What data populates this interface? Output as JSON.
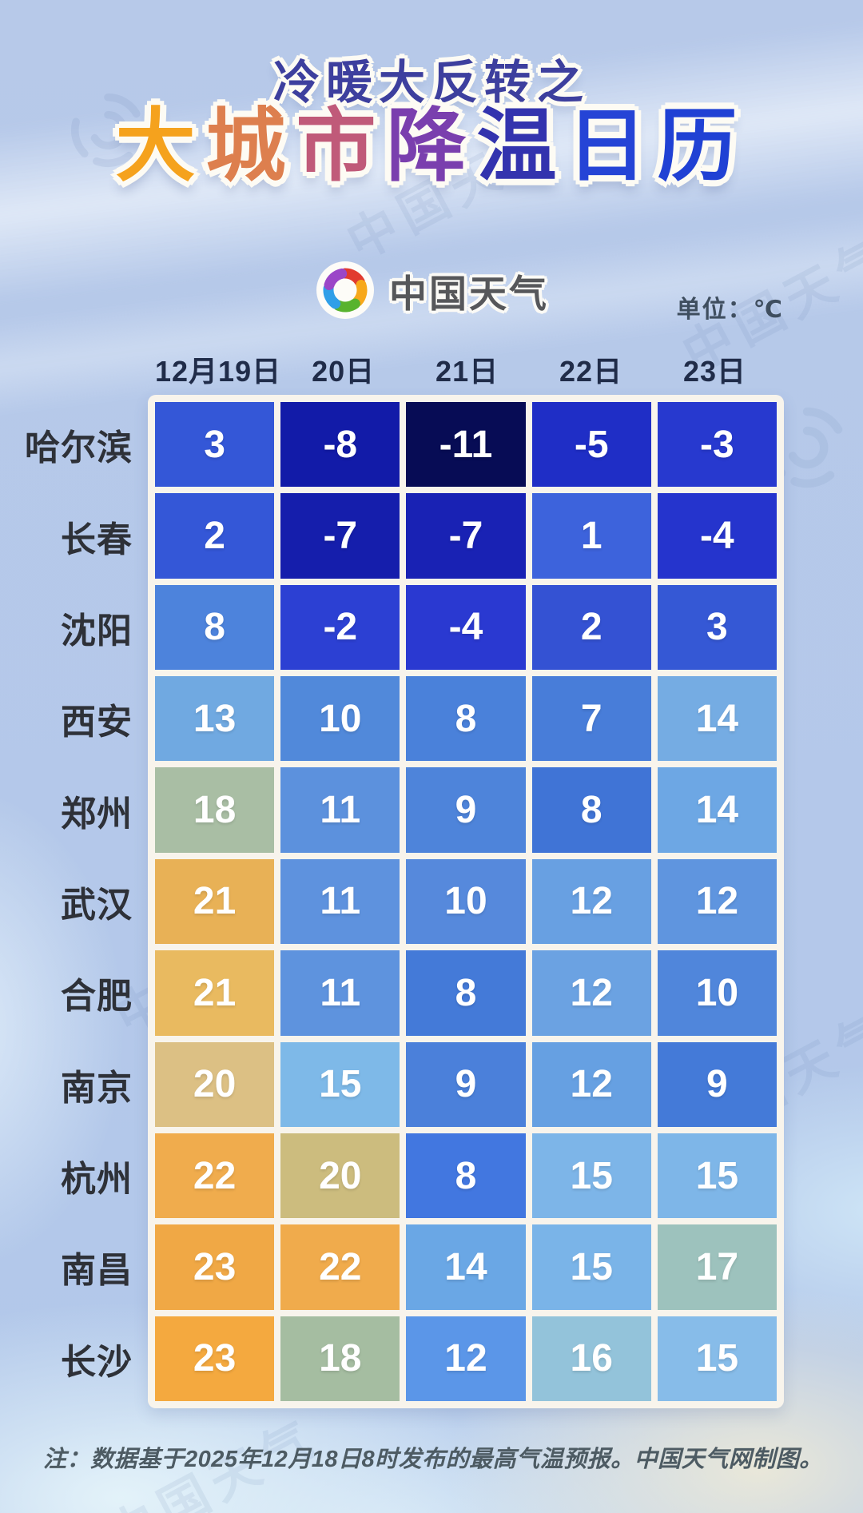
{
  "title": {
    "line1": "冷暖大反转之",
    "line2": "大城市降温日历",
    "line2_char_colors": [
      "#f5a21d",
      "#dd7f4e",
      "#c05a79",
      "#7a3fae",
      "#3333ae",
      "#2544d6",
      "#2041d4"
    ]
  },
  "brand": {
    "logo_icon": "pinwheel-icon",
    "logo_text": "中国天气",
    "petal_colors": [
      "#e13b2f",
      "#f7a81b",
      "#58b32e",
      "#2f9fe8",
      "#9b46c8"
    ]
  },
  "unit_label": "单位：℃",
  "table": {
    "date_headers": [
      "12月19日",
      "20日",
      "21日",
      "22日",
      "23日"
    ],
    "rows": [
      {
        "city": "哈尔滨",
        "cells": [
          {
            "v": "3",
            "c": "#3457d7"
          },
          {
            "v": "-8",
            "c": "#121ba8"
          },
          {
            "v": "-11",
            "c": "#070c55"
          },
          {
            "v": "-5",
            "c": "#1f2ec6"
          },
          {
            "v": "-3",
            "c": "#2739cf"
          }
        ]
      },
      {
        "city": "长春",
        "cells": [
          {
            "v": "2",
            "c": "#3457d7"
          },
          {
            "v": "-7",
            "c": "#151eac"
          },
          {
            "v": "-7",
            "c": "#1922b4"
          },
          {
            "v": "1",
            "c": "#3d63dc"
          },
          {
            "v": "-4",
            "c": "#2534cd"
          }
        ]
      },
      {
        "city": "沈阳",
        "cells": [
          {
            "v": "8",
            "c": "#4d83dc"
          },
          {
            "v": "-2",
            "c": "#2c40d3"
          },
          {
            "v": "-4",
            "c": "#2a39d1"
          },
          {
            "v": "2",
            "c": "#3452d3"
          },
          {
            "v": "3",
            "c": "#3558d5"
          }
        ]
      },
      {
        "city": "西安",
        "cells": [
          {
            "v": "13",
            "c": "#70a9e1"
          },
          {
            "v": "10",
            "c": "#5189da"
          },
          {
            "v": "8",
            "c": "#4a81da"
          },
          {
            "v": "7",
            "c": "#487dd9"
          },
          {
            "v": "14",
            "c": "#75ace3"
          }
        ]
      },
      {
        "city": "郑州",
        "cells": [
          {
            "v": "18",
            "c": "#a9bea4"
          },
          {
            "v": "11",
            "c": "#5c91dd"
          },
          {
            "v": "9",
            "c": "#4e84da"
          },
          {
            "v": "8",
            "c": "#4074d6"
          },
          {
            "v": "14",
            "c": "#6da7e4"
          }
        ]
      },
      {
        "city": "武汉",
        "cells": [
          {
            "v": "21",
            "c": "#e8b156"
          },
          {
            "v": "11",
            "c": "#5e92de"
          },
          {
            "v": "10",
            "c": "#5689dc"
          },
          {
            "v": "12",
            "c": "#68a0e2"
          },
          {
            "v": "12",
            "c": "#5f95df"
          }
        ]
      },
      {
        "city": "合肥",
        "cells": [
          {
            "v": "21",
            "c": "#e9ba60"
          },
          {
            "v": "11",
            "c": "#5e93de"
          },
          {
            "v": "8",
            "c": "#447ad8"
          },
          {
            "v": "12",
            "c": "#6ba2e2"
          },
          {
            "v": "10",
            "c": "#5086db"
          }
        ]
      },
      {
        "city": "南京",
        "cells": [
          {
            "v": "20",
            "c": "#dcc084"
          },
          {
            "v": "15",
            "c": "#7eb9e8"
          },
          {
            "v": "9",
            "c": "#4b80da"
          },
          {
            "v": "12",
            "c": "#66a0e2"
          },
          {
            "v": "9",
            "c": "#447ad8"
          }
        ]
      },
      {
        "city": "杭州",
        "cells": [
          {
            "v": "22",
            "c": "#f0ac4d"
          },
          {
            "v": "20",
            "c": "#ccbc7e"
          },
          {
            "v": "8",
            "c": "#4277e0"
          },
          {
            "v": "15",
            "c": "#7db5e8"
          },
          {
            "v": "15",
            "c": "#7eb6e8"
          }
        ]
      },
      {
        "city": "南昌",
        "cells": [
          {
            "v": "23",
            "c": "#f0a845"
          },
          {
            "v": "22",
            "c": "#f0ab4c"
          },
          {
            "v": "14",
            "c": "#6aa7e5"
          },
          {
            "v": "15",
            "c": "#7ab4e8"
          },
          {
            "v": "17",
            "c": "#9dc2bd"
          }
        ]
      },
      {
        "city": "长沙",
        "cells": [
          {
            "v": "23",
            "c": "#f4a93f"
          },
          {
            "v": "18",
            "c": "#a5bda1"
          },
          {
            "v": "12",
            "c": "#5b96e8"
          },
          {
            "v": "16",
            "c": "#93c3da"
          },
          {
            "v": "15",
            "c": "#87bce9"
          }
        ]
      }
    ]
  },
  "footnote": "注：数据基于2025年12月18日8时发布的最高气温预报。中国天气网制图。",
  "chart_data": {
    "type": "heatmap",
    "title": "冷暖大反转之 大城市降温日历",
    "subtitle": "中国天气",
    "unit": "℃",
    "columns": [
      "12月19日",
      "20日",
      "21日",
      "22日",
      "23日"
    ],
    "rows": [
      "哈尔滨",
      "长春",
      "沈阳",
      "西安",
      "郑州",
      "武汉",
      "合肥",
      "南京",
      "杭州",
      "南昌",
      "长沙"
    ],
    "values": [
      [
        3,
        -8,
        -11,
        -5,
        -3
      ],
      [
        2,
        -7,
        -7,
        1,
        -4
      ],
      [
        8,
        -2,
        -4,
        2,
        3
      ],
      [
        13,
        10,
        8,
        7,
        14
      ],
      [
        18,
        11,
        9,
        8,
        14
      ],
      [
        21,
        11,
        10,
        12,
        12
      ],
      [
        21,
        11,
        8,
        12,
        10
      ],
      [
        20,
        15,
        9,
        12,
        9
      ],
      [
        22,
        20,
        8,
        15,
        15
      ],
      [
        23,
        22,
        14,
        15,
        17
      ],
      [
        23,
        18,
        12,
        16,
        15
      ]
    ],
    "legend_position": "none",
    "note": "注：数据基于2025年12月18日8时发布的最高气温预报。中国天气网制图。"
  }
}
